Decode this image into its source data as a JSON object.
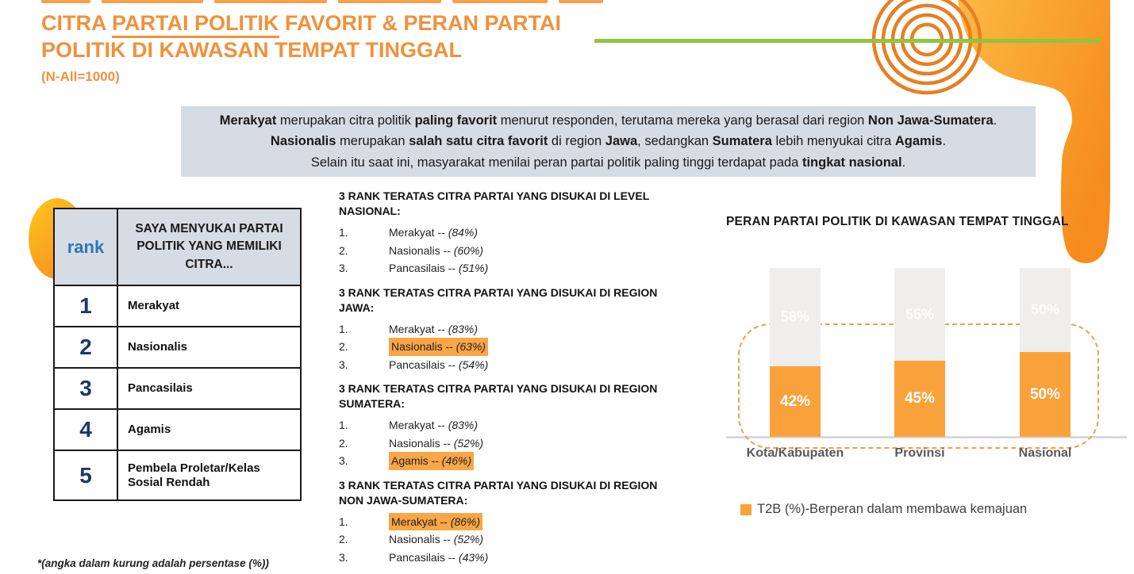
{
  "colors": {
    "title_orange": "#F0913C",
    "summary_bg": "#D6DCE4",
    "rank_blue": "#2E75B6",
    "rank_number_navy": "#1F3864",
    "highlight_orange": "#F9A646",
    "bar_orange": "#F9A23C",
    "bar_gray": "#EFEEEC",
    "green_line": "#8DC63F",
    "deco_orange": "#F68C1C"
  },
  "page": {
    "title_pre": "CITRA ",
    "title_underlined": "PARTAI POLITIK",
    "title_post": " FAVORIT & PERAN PARTAI",
    "title_line2": "POLITIK DI KAWASAN TEMPAT TINGGAL",
    "sample_note": "(N-All=1000)",
    "footnote": "*(angka dalam kurung adalah persentase (%))"
  },
  "summary": {
    "lines": [
      [
        {
          "t": "Merakyat",
          "b": true
        },
        {
          "t": " merupakan citra politik ",
          "b": false
        },
        {
          "t": "paling favorit",
          "b": true
        },
        {
          "t": " menurut responden, terutama mereka yang berasal dari region ",
          "b": false
        },
        {
          "t": "Non Jawa-Sumatera",
          "b": true
        },
        {
          "t": ".",
          "b": false
        }
      ],
      [
        {
          "t": "Nasionalis",
          "b": true
        },
        {
          "t": " merupakan ",
          "b": false
        },
        {
          "t": "salah satu citra favorit",
          "b": true
        },
        {
          "t": " di region ",
          "b": false
        },
        {
          "t": "Jawa",
          "b": true
        },
        {
          "t": ", sedangkan ",
          "b": false
        },
        {
          "t": "Sumatera",
          "b": true
        },
        {
          "t": " lebih menyukai citra ",
          "b": false
        },
        {
          "t": "Agamis",
          "b": true
        },
        {
          "t": ".",
          "b": false
        }
      ],
      [
        {
          "t": "Selain itu saat ini, masyarakat menilai peran partai politik paling tinggi terdapat pada ",
          "b": false
        },
        {
          "t": "tingkat nasional",
          "b": true
        },
        {
          "t": ".",
          "b": false
        }
      ]
    ]
  },
  "rank_table": {
    "col1_header": "rank",
    "col2_header": "SAYA MENYUKAI PARTAI POLITIK YANG MEMILIKI CITRA...",
    "rows": [
      {
        "rank": "1",
        "label": "Merakyat"
      },
      {
        "rank": "2",
        "label": "Nasionalis"
      },
      {
        "rank": "3",
        "label": "Pancasilais"
      },
      {
        "rank": "4",
        "label": "Agamis"
      },
      {
        "rank": "5",
        "label": "Pembela Proletar/Kelas Sosial Rendah"
      }
    ]
  },
  "rank_lists": {
    "sections": [
      {
        "heading": "3 RANK TERATAS CITRA PARTAI YANG DISUKAI DI LEVEL NASIONAL:",
        "items": [
          {
            "no": "1.",
            "name": "Merakyat",
            "sep": " -- ",
            "pct": "(84%)",
            "highlight": false
          },
          {
            "no": "2.",
            "name": "Nasionalis",
            "sep": " -- ",
            "pct": "(60%)",
            "highlight": false
          },
          {
            "no": "3.",
            "name": "Pancasilais",
            "sep": " -- ",
            "pct": "(51%)",
            "highlight": false
          }
        ]
      },
      {
        "heading": "3 RANK TERATAS CITRA PARTAI YANG DISUKAI DI REGION JAWA:",
        "items": [
          {
            "no": "1.",
            "name": "Merakyat",
            "sep": " -- ",
            "pct": "(83%)",
            "highlight": false
          },
          {
            "no": "2.",
            "name": "Nasionalis",
            "sep": " -- ",
            "pct": "(63%)",
            "highlight": true
          },
          {
            "no": "3.",
            "name": "Pancasilais",
            "sep": " -- ",
            "pct": "(54%)",
            "highlight": false
          }
        ]
      },
      {
        "heading": "3 RANK TERATAS CITRA PARTAI YANG DISUKAI DI REGION SUMATERA:",
        "items": [
          {
            "no": "1.",
            "name": "Merakyat",
            "sep": " -- ",
            "pct": "(83%)",
            "highlight": false
          },
          {
            "no": "2.",
            "name": "Nasionalis",
            "sep": " -- ",
            "pct": "(52%)",
            "highlight": false
          },
          {
            "no": "3.",
            "name": "Agamis",
            "sep": " -- ",
            "pct": "(46%)",
            "highlight": true
          }
        ]
      },
      {
        "heading": "3 RANK TERATAS CITRA PARTAI YANG DISUKAI DI REGION NON JAWA-SUMATERA:",
        "items": [
          {
            "no": "1.",
            "name": "Merakyat",
            "sep": " -- ",
            "pct": "(86%)",
            "highlight": true
          },
          {
            "no": "2.",
            "name": "Nasionalis",
            "sep": " -- ",
            "pct": "(52%)",
            "highlight": false
          },
          {
            "no": "3.",
            "name": "Pancasilais",
            "sep": " -- ",
            "pct": "(43%)",
            "highlight": false
          }
        ]
      }
    ]
  },
  "chart_data": {
    "type": "bar",
    "subtype": "stacked-100",
    "title": "PERAN PARTAI POLITIK DI KAWASAN TEMPAT TINGGAL",
    "categories": [
      "Kota/Kabupaten",
      "Provinsi",
      "Nasional"
    ],
    "series": [
      {
        "name": "T2B (%)-Berperan dalam membawa kemajuan",
        "values": [
          42,
          45,
          50
        ],
        "color": "#F9A23C",
        "label_format": "percent"
      },
      {
        "name": "",
        "values": [
          58,
          55,
          50
        ],
        "color": "#EFEEEC",
        "label_format": "percent"
      }
    ],
    "ylim": [
      0,
      100
    ],
    "grid": false,
    "legend_position": "bottom",
    "legend": [
      {
        "label": "T2B (%)-Berperan dalam membawa kemajuan",
        "color": "#F9A23C"
      }
    ]
  }
}
